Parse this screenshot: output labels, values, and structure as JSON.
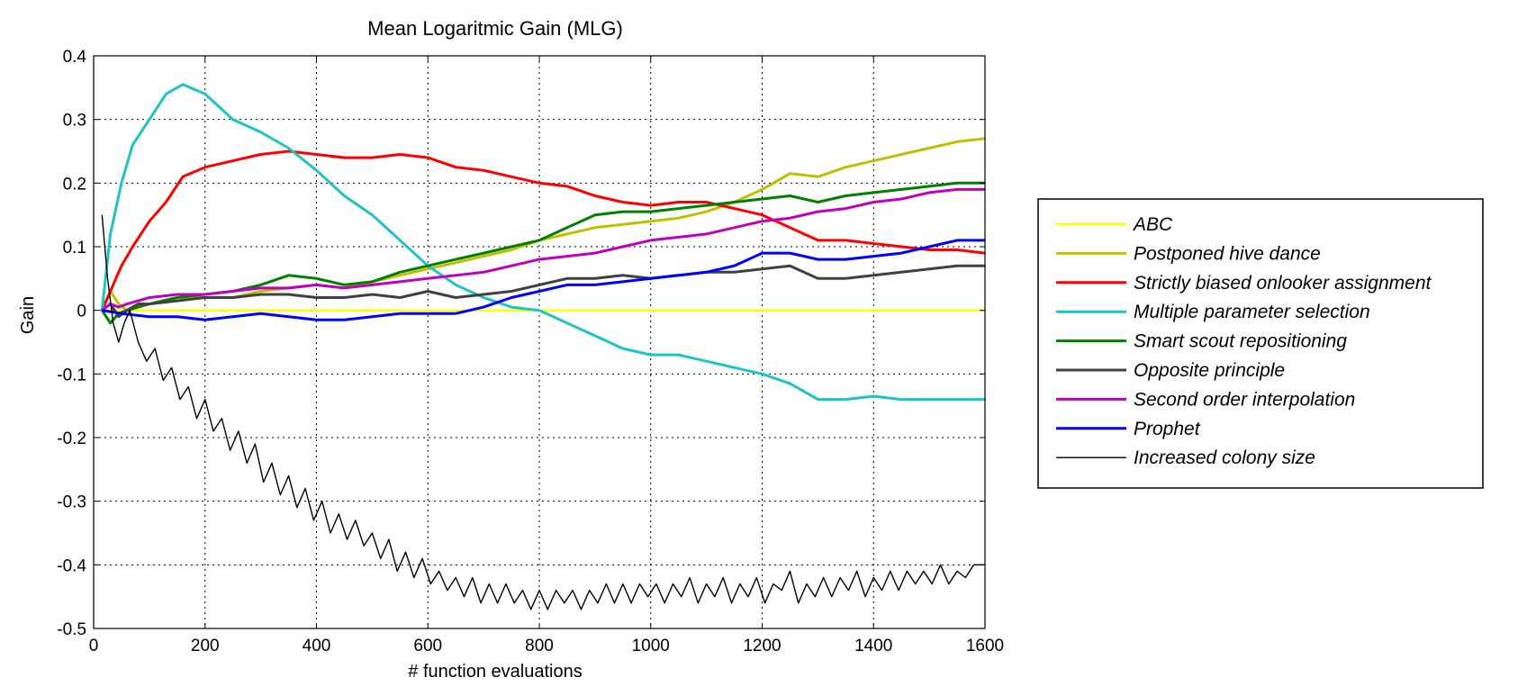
{
  "chart_data": {
    "type": "line",
    "title": "Mean Logaritmic Gain (MLG)",
    "xlabel": "# function evaluations",
    "ylabel": "Gain",
    "xlim": [
      0,
      1600
    ],
    "ylim": [
      -0.5,
      0.4
    ],
    "x_ticks": [
      0,
      200,
      400,
      600,
      800,
      1000,
      1200,
      1400,
      1600
    ],
    "y_ticks": [
      0.4,
      0.3,
      0.2,
      0.1,
      0,
      -0.1,
      -0.2,
      -0.3,
      -0.4,
      -0.5
    ],
    "y_tick_labels": [
      "0.4",
      "0.3",
      "0.2",
      "0.1",
      "0",
      "-0.1",
      "-0.2",
      "-0.3",
      "-0.4",
      "-0.5"
    ],
    "grid": true,
    "legend_position": "outside-right",
    "series": [
      {
        "name": "ABC",
        "color": "#ffff00",
        "width": 2.5,
        "x": [
          15,
          1600
        ],
        "y": [
          0,
          0
        ]
      },
      {
        "name": "Postponed hive dance",
        "color": "#bfbf00",
        "width": 3,
        "x": [
          15,
          30,
          45,
          60,
          80,
          100,
          150,
          200,
          250,
          300,
          350,
          400,
          450,
          500,
          550,
          600,
          650,
          700,
          750,
          800,
          850,
          900,
          950,
          1000,
          1050,
          1100,
          1150,
          1200,
          1250,
          1300,
          1350,
          1400,
          1450,
          1500,
          1550,
          1600
        ],
        "y": [
          0,
          0.03,
          0.01,
          0.0,
          0.01,
          0.01,
          0.02,
          0.02,
          0.02,
          0.03,
          0.035,
          0.04,
          0.035,
          0.045,
          0.055,
          0.065,
          0.075,
          0.085,
          0.095,
          0.11,
          0.12,
          0.13,
          0.135,
          0.14,
          0.145,
          0.155,
          0.17,
          0.19,
          0.215,
          0.21,
          0.225,
          0.235,
          0.245,
          0.255,
          0.265,
          0.27
        ]
      },
      {
        "name": "Strictly biased onlooker assignment",
        "color": "#ff0000",
        "width": 3,
        "x": [
          15,
          30,
          50,
          70,
          100,
          130,
          160,
          200,
          250,
          300,
          350,
          400,
          450,
          500,
          550,
          600,
          650,
          700,
          750,
          800,
          850,
          900,
          950,
          1000,
          1050,
          1100,
          1150,
          1200,
          1250,
          1300,
          1350,
          1400,
          1450,
          1500,
          1550,
          1600
        ],
        "y": [
          0,
          0.03,
          0.07,
          0.1,
          0.14,
          0.17,
          0.21,
          0.225,
          0.235,
          0.245,
          0.25,
          0.245,
          0.24,
          0.24,
          0.245,
          0.24,
          0.225,
          0.22,
          0.21,
          0.2,
          0.195,
          0.18,
          0.17,
          0.165,
          0.17,
          0.17,
          0.16,
          0.15,
          0.13,
          0.11,
          0.11,
          0.105,
          0.1,
          0.095,
          0.095,
          0.09
        ]
      },
      {
        "name": "Multiple parameter selection",
        "color": "#1ec4c4",
        "width": 3,
        "x": [
          15,
          30,
          50,
          70,
          100,
          130,
          160,
          200,
          250,
          300,
          350,
          400,
          450,
          500,
          550,
          600,
          650,
          700,
          750,
          800,
          850,
          900,
          950,
          1000,
          1050,
          1100,
          1150,
          1200,
          1250,
          1300,
          1350,
          1400,
          1450,
          1500,
          1550,
          1600
        ],
        "y": [
          0,
          0.12,
          0.2,
          0.26,
          0.3,
          0.34,
          0.355,
          0.34,
          0.3,
          0.28,
          0.255,
          0.22,
          0.18,
          0.15,
          0.11,
          0.07,
          0.04,
          0.02,
          0.005,
          0.0,
          -0.02,
          -0.04,
          -0.06,
          -0.07,
          -0.07,
          -0.08,
          -0.09,
          -0.1,
          -0.115,
          -0.14,
          -0.14,
          -0.135,
          -0.14,
          -0.14,
          -0.14,
          -0.14
        ]
      },
      {
        "name": "Smart scout repositioning",
        "color": "#007f00",
        "width": 3,
        "x": [
          15,
          30,
          45,
          60,
          80,
          100,
          150,
          200,
          250,
          300,
          350,
          400,
          450,
          500,
          550,
          600,
          650,
          700,
          750,
          800,
          850,
          900,
          950,
          1000,
          1050,
          1100,
          1150,
          1200,
          1250,
          1300,
          1350,
          1400,
          1450,
          1500,
          1550,
          1600
        ],
        "y": [
          0,
          -0.02,
          -0.005,
          0.0,
          0.005,
          0.01,
          0.02,
          0.025,
          0.03,
          0.04,
          0.055,
          0.05,
          0.04,
          0.045,
          0.06,
          0.07,
          0.08,
          0.09,
          0.1,
          0.11,
          0.13,
          0.15,
          0.155,
          0.155,
          0.16,
          0.165,
          0.17,
          0.175,
          0.18,
          0.17,
          0.18,
          0.185,
          0.19,
          0.195,
          0.2,
          0.2
        ]
      },
      {
        "name": "Opposite principle",
        "color": "#404040",
        "width": 3,
        "x": [
          15,
          30,
          45,
          60,
          80,
          100,
          150,
          200,
          250,
          300,
          350,
          400,
          450,
          500,
          550,
          600,
          650,
          700,
          750,
          800,
          850,
          900,
          950,
          1000,
          1050,
          1100,
          1150,
          1200,
          1250,
          1300,
          1350,
          1400,
          1450,
          1500,
          1550,
          1600
        ],
        "y": [
          0,
          0.01,
          -0.01,
          0.0,
          0.01,
          0.01,
          0.015,
          0.02,
          0.02,
          0.025,
          0.025,
          0.02,
          0.02,
          0.025,
          0.02,
          0.03,
          0.02,
          0.025,
          0.03,
          0.04,
          0.05,
          0.05,
          0.055,
          0.05,
          0.055,
          0.06,
          0.06,
          0.065,
          0.07,
          0.05,
          0.05,
          0.055,
          0.06,
          0.065,
          0.07,
          0.07
        ]
      },
      {
        "name": "Second order interpolation",
        "color": "#bf00bf",
        "width": 3,
        "x": [
          15,
          30,
          45,
          60,
          80,
          100,
          150,
          200,
          250,
          300,
          350,
          400,
          450,
          500,
          550,
          600,
          650,
          700,
          750,
          800,
          850,
          900,
          950,
          1000,
          1050,
          1100,
          1150,
          1200,
          1250,
          1300,
          1350,
          1400,
          1450,
          1500,
          1550,
          1600
        ],
        "y": [
          0,
          0.01,
          0.005,
          0.01,
          0.015,
          0.02,
          0.025,
          0.025,
          0.03,
          0.035,
          0.035,
          0.04,
          0.035,
          0.04,
          0.045,
          0.05,
          0.055,
          0.06,
          0.07,
          0.08,
          0.085,
          0.09,
          0.1,
          0.11,
          0.115,
          0.12,
          0.13,
          0.14,
          0.145,
          0.155,
          0.16,
          0.17,
          0.175,
          0.185,
          0.19,
          0.19
        ]
      },
      {
        "name": "Prophet",
        "color": "#0000ff",
        "width": 3,
        "x": [
          15,
          50,
          100,
          150,
          200,
          250,
          300,
          350,
          400,
          450,
          500,
          550,
          600,
          650,
          700,
          750,
          800,
          850,
          900,
          950,
          1000,
          1050,
          1100,
          1150,
          1200,
          1250,
          1300,
          1350,
          1400,
          1450,
          1500,
          1550,
          1600
        ],
        "y": [
          0,
          -0.005,
          -0.01,
          -0.01,
          -0.015,
          -0.01,
          -0.005,
          -0.01,
          -0.015,
          -0.015,
          -0.01,
          -0.005,
          -0.005,
          -0.005,
          0.005,
          0.02,
          0.03,
          0.04,
          0.04,
          0.045,
          0.05,
          0.055,
          0.06,
          0.07,
          0.09,
          0.09,
          0.08,
          0.08,
          0.085,
          0.09,
          0.1,
          0.11,
          0.11
        ]
      },
      {
        "name": "Increased colony size",
        "color": "#000000",
        "width": 1.4,
        "x": [
          15,
          25,
          35,
          45,
          55,
          65,
          80,
          95,
          110,
          125,
          140,
          155,
          170,
          185,
          200,
          215,
          230,
          245,
          260,
          275,
          290,
          305,
          320,
          335,
          350,
          365,
          380,
          395,
          410,
          425,
          440,
          455,
          470,
          485,
          500,
          515,
          530,
          545,
          560,
          575,
          590,
          605,
          620,
          635,
          650,
          665,
          680,
          695,
          710,
          725,
          740,
          755,
          770,
          785,
          800,
          815,
          830,
          845,
          860,
          875,
          890,
          905,
          920,
          935,
          950,
          965,
          980,
          995,
          1010,
          1025,
          1040,
          1055,
          1070,
          1085,
          1100,
          1115,
          1130,
          1145,
          1160,
          1175,
          1190,
          1205,
          1220,
          1235,
          1250,
          1265,
          1280,
          1295,
          1310,
          1325,
          1340,
          1355,
          1370,
          1385,
          1400,
          1415,
          1430,
          1445,
          1460,
          1475,
          1490,
          1505,
          1520,
          1535,
          1550,
          1565,
          1580,
          1600
        ],
        "y": [
          0.15,
          0.05,
          -0.02,
          -0.05,
          -0.02,
          0.0,
          -0.05,
          -0.08,
          -0.06,
          -0.11,
          -0.09,
          -0.14,
          -0.12,
          -0.17,
          -0.14,
          -0.19,
          -0.17,
          -0.22,
          -0.19,
          -0.24,
          -0.21,
          -0.27,
          -0.24,
          -0.29,
          -0.26,
          -0.31,
          -0.28,
          -0.33,
          -0.3,
          -0.35,
          -0.32,
          -0.36,
          -0.33,
          -0.37,
          -0.35,
          -0.39,
          -0.36,
          -0.41,
          -0.38,
          -0.42,
          -0.39,
          -0.43,
          -0.41,
          -0.44,
          -0.42,
          -0.45,
          -0.42,
          -0.46,
          -0.43,
          -0.46,
          -0.43,
          -0.46,
          -0.44,
          -0.47,
          -0.44,
          -0.47,
          -0.44,
          -0.46,
          -0.44,
          -0.47,
          -0.44,
          -0.46,
          -0.43,
          -0.46,
          -0.43,
          -0.46,
          -0.43,
          -0.45,
          -0.43,
          -0.46,
          -0.43,
          -0.45,
          -0.42,
          -0.46,
          -0.43,
          -0.45,
          -0.42,
          -0.46,
          -0.43,
          -0.45,
          -0.42,
          -0.46,
          -0.43,
          -0.44,
          -0.41,
          -0.46,
          -0.43,
          -0.45,
          -0.42,
          -0.45,
          -0.42,
          -0.44,
          -0.41,
          -0.45,
          -0.42,
          -0.44,
          -0.41,
          -0.44,
          -0.41,
          -0.43,
          -0.41,
          -0.43,
          -0.4,
          -0.43,
          -0.41,
          -0.42,
          -0.4,
          -0.4
        ]
      }
    ]
  }
}
